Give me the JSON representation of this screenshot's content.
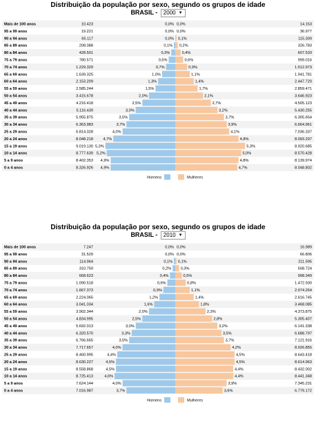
{
  "colors": {
    "male": "#9ec9ea",
    "female": "#f8c79e",
    "row_stripe": "#f2f2f2"
  },
  "legend": {
    "male_label": "Homens",
    "female_label": "Mulheres"
  },
  "chart_data": [
    {
      "type": "bar",
      "title": "Distribuição da população por sexo, segundo os grupos de idade",
      "country": "BRASIL -",
      "year": "2000",
      "categories": [
        "Mais de 100 anos",
        "95 a 99 anos",
        "90 a 94 anos",
        "85 a 89 anos",
        "80 a 84 anos",
        "75 a 79 anos",
        "70 a 74 anos",
        "65 a 69 anos",
        "60 a 64 anos",
        "55 a 59 anos",
        "50 a 54 anos",
        "45 a 49 anos",
        "40 a 44 anos",
        "35 a 39 anos",
        "30 a 34 anos",
        "25 a 29 anos",
        "20 a 24 anos",
        "15 a 19 anos",
        "10 a 14 anos",
        "5 a 9 anos",
        "0 a 4 anos"
      ],
      "series": [
        {
          "name": "Homens",
          "counts": [
            "10.423",
            "19.221",
            "65.117",
            "208.088",
            "428.501",
            "780.571",
            "1.229.329",
            "1.639.325",
            "2.153.209",
            "2.585.244",
            "3.415.678",
            "4.216.418",
            "5.116.439",
            "5.955.875",
            "6.363.983",
            "6.814.328",
            "8.048.218",
            "9.019.130",
            "8.777.639",
            "8.402.353",
            "8.326.926"
          ],
          "percents": [
            "0,0%",
            "0,0%",
            "0,0%",
            "0,1%",
            "0,3%",
            "0,5%",
            "0,7%",
            "1,0%",
            "1,3%",
            "1,5%",
            "2,0%",
            "2,5%",
            "3,0%",
            "3,5%",
            "3,7%",
            "4,0%",
            "4,7%",
            "5,3%",
            "5,2%",
            "4,9%",
            "4,9%"
          ],
          "values": [
            0.0,
            0.0,
            0.0,
            0.1,
            0.3,
            0.5,
            0.7,
            1.0,
            1.3,
            1.5,
            2.0,
            2.5,
            3.0,
            3.5,
            3.7,
            4.0,
            4.7,
            5.3,
            5.2,
            4.9,
            4.9
          ]
        },
        {
          "name": "Mulheres",
          "counts": [
            "14.153",
            "36.977",
            "115.309",
            "326.783",
            "607.533",
            "999.016",
            "1.512.973",
            "1.941.781",
            "2.447.720",
            "2.859.471",
            "3.646.923",
            "4.505.123",
            "5.430.255",
            "6.305.654",
            "6.664.961",
            "7.036.337",
            "8.093.297",
            "8.920.685",
            "8.570.428",
            "8.139.974",
            "8.048.802"
          ],
          "percents": [
            "0,0%",
            "0,0%",
            "0,1%",
            "0,2%",
            "0,4%",
            "0,6%",
            "0,9%",
            "1,1%",
            "1,4%",
            "1,7%",
            "2,1%",
            "2,7%",
            "3,2%",
            "3,7%",
            "3,9%",
            "4,1%",
            "4,8%",
            "5,3%",
            "5,0%",
            "4,8%",
            "4,7%"
          ],
          "values": [
            0.0,
            0.0,
            0.1,
            0.2,
            0.4,
            0.6,
            0.9,
            1.1,
            1.4,
            1.7,
            2.1,
            2.7,
            3.2,
            3.7,
            3.9,
            4.1,
            4.8,
            5.3,
            5.0,
            4.8,
            4.7
          ]
        }
      ]
    },
    {
      "type": "bar",
      "title": "Distribuição da população por sexo, segundo os grupos de idade",
      "country": "BRASIL -",
      "year": "2010",
      "categories": [
        "Mais de 100 anos",
        "95 a 99 anos",
        "90 a 94 anos",
        "85 a 89 anos",
        "80 a 84 anos",
        "75 a 79 anos",
        "70 a 74 anos",
        "65 a 69 anos",
        "60 a 64 anos",
        "55 a 59 anos",
        "50 a 54 anos",
        "45 a 49 anos",
        "40 a 44 anos",
        "35 a 39 anos",
        "30 a 34 anos",
        "25 a 29 anos",
        "20 a 24 anos",
        "15 a 19 anos",
        "10 a 14 anos",
        "5 a 9 anos",
        "0 a 4 anos"
      ],
      "series": [
        {
          "name": "Homens",
          "counts": [
            "7.247",
            "31.529",
            "114.964",
            "310.759",
            "668.623",
            "1.090.518",
            "1.667.373",
            "2.224.065",
            "3.041.034",
            "3.902.344",
            "4.834.995",
            "5.692.013",
            "6.320.570",
            "6.766.665",
            "7.717.657",
            "8.460.995",
            "8.630.227",
            "8.558.868",
            "8.725.413",
            "7.624.144",
            "7.016.987"
          ],
          "percents": [
            "0,0%",
            "0,0%",
            "0,1%",
            "0,2%",
            "0,4%",
            "0,6%",
            "0,9%",
            "1,2%",
            "1,6%",
            "2,0%",
            "2,5%",
            "3,0%",
            "3,3%",
            "3,5%",
            "4,0%",
            "4,4%",
            "4,5%",
            "4,5%",
            "4,6%",
            "4,0%",
            "3,7%"
          ],
          "values": [
            0.0,
            0.0,
            0.1,
            0.2,
            0.4,
            0.6,
            0.9,
            1.2,
            1.6,
            2.0,
            2.5,
            3.0,
            3.3,
            3.5,
            4.0,
            4.4,
            4.5,
            4.5,
            4.6,
            4.0,
            3.7
          ]
        },
        {
          "name": "Mulheres",
          "counts": [
            "16.989",
            "66.806",
            "211.595",
            "508.724",
            "998.349",
            "1.472.930",
            "2.074.264",
            "2.616.745",
            "3.468.085",
            "4.373.875",
            "5.305.407",
            "6.141.338",
            "6.688.797",
            "7.121.916",
            "8.026.855",
            "8.643.418",
            "8.614.963",
            "8.432.002",
            "8.441.348",
            "7.345.231",
            "6.779.172"
          ],
          "percents": [
            "0,0%",
            "0,0%",
            "0,1%",
            "0,3%",
            "0,5%",
            "0,8%",
            "1,1%",
            "1,4%",
            "1,8%",
            "2,3%",
            "2,8%",
            "3,2%",
            "3,5%",
            "3,7%",
            "4,2%",
            "4,5%",
            "4,5%",
            "4,4%",
            "4,4%",
            "3,9%",
            "3,6%"
          ],
          "values": [
            0.0,
            0.0,
            0.1,
            0.3,
            0.5,
            0.8,
            1.1,
            1.4,
            1.8,
            2.3,
            2.8,
            3.2,
            3.5,
            3.7,
            4.2,
            4.5,
            4.5,
            4.4,
            4.4,
            3.9,
            3.6
          ]
        }
      ]
    }
  ]
}
